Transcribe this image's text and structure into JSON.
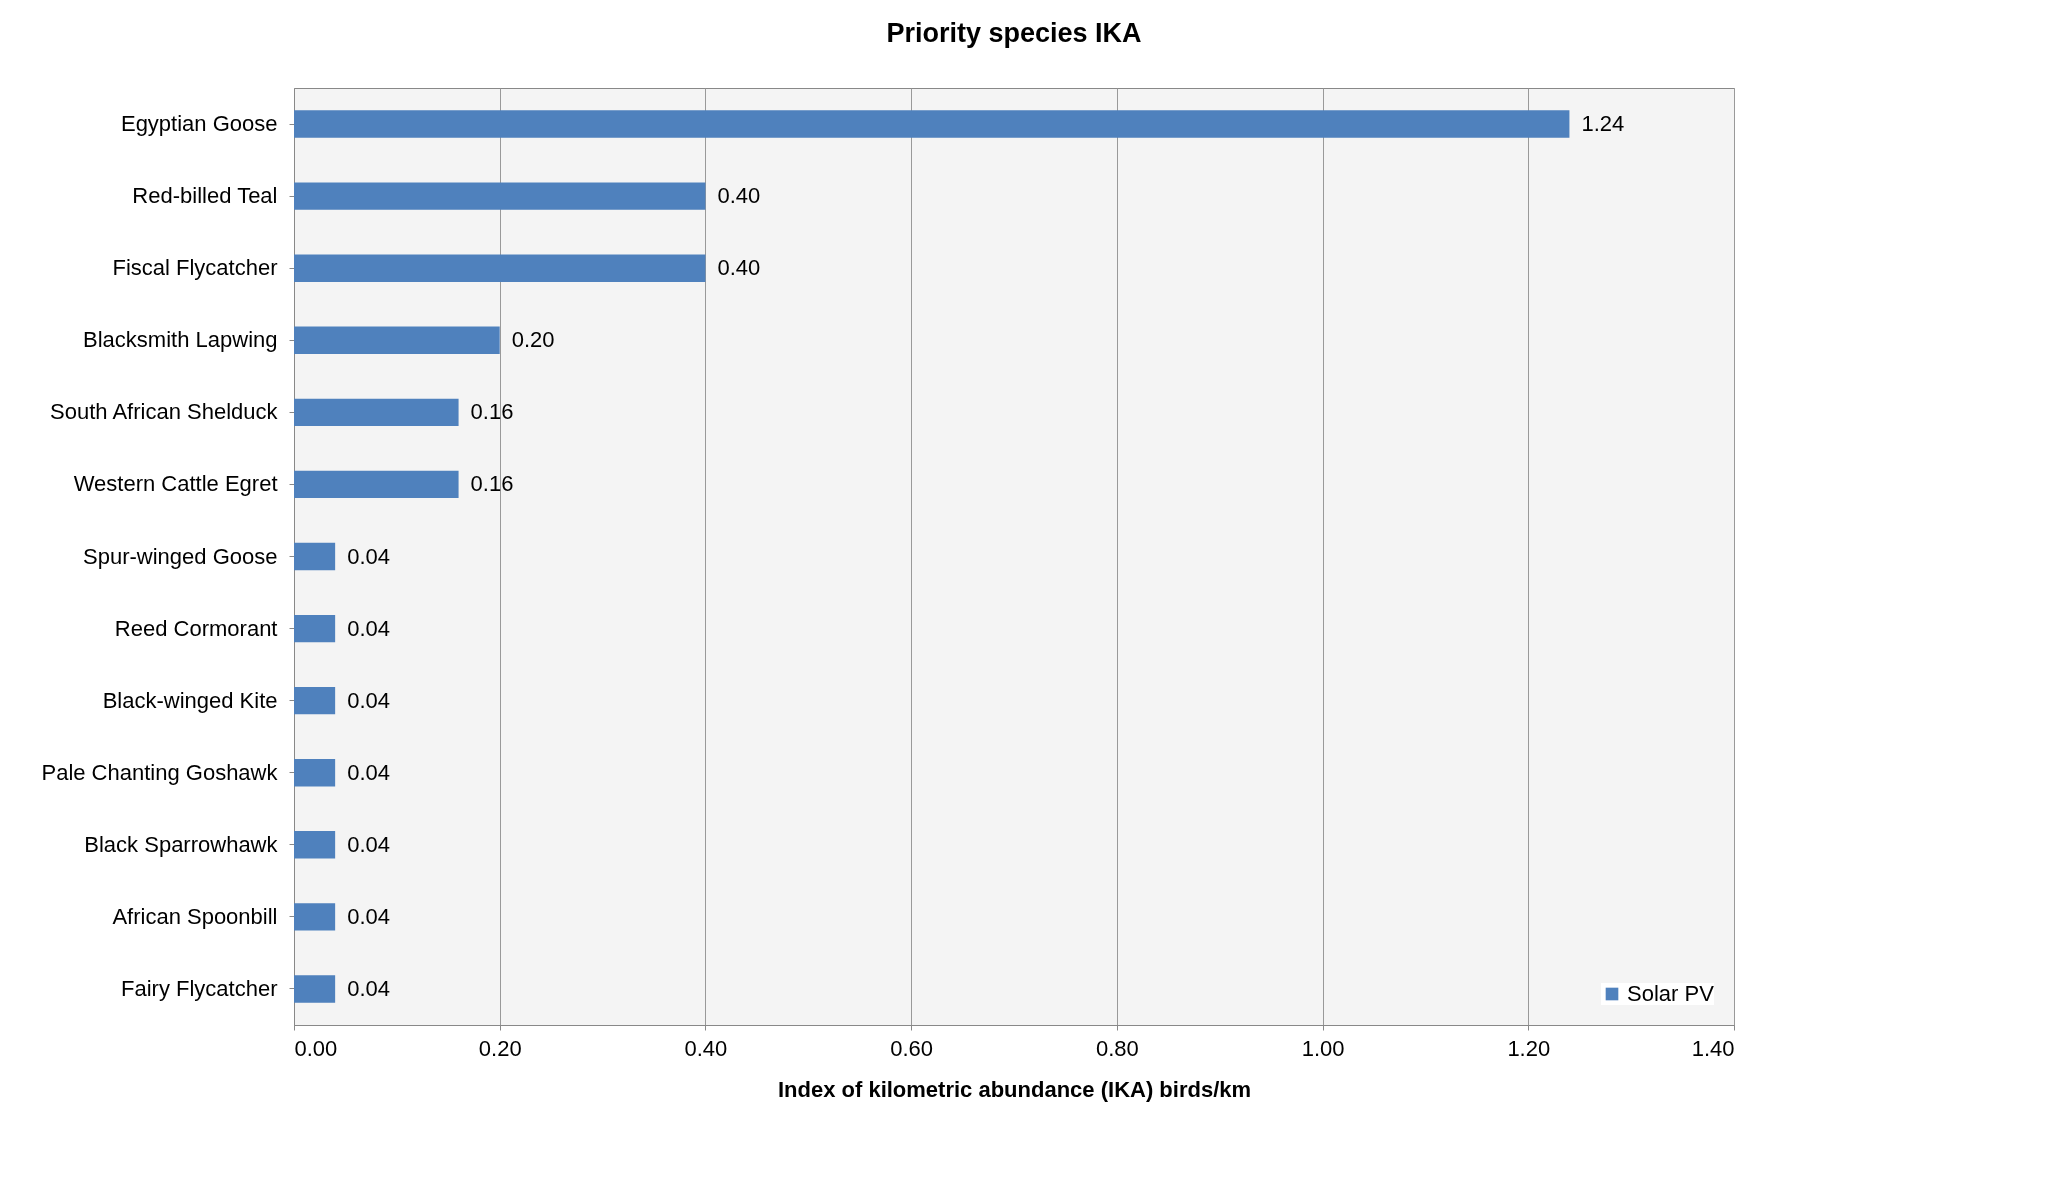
{
  "chart_data": {
    "type": "bar",
    "orientation": "horizontal",
    "title": "Priority species IKA",
    "xlabel": "Index of kilometric abundance  (IKA) birds/km",
    "categories": [
      "Egyptian Goose",
      "Red-billed Teal",
      "Fiscal Flycatcher",
      "Blacksmith Lapwing",
      "South African Shelduck",
      "Western Cattle Egret",
      "Spur-winged Goose",
      "Reed Cormorant",
      "Black-winged Kite",
      "Pale Chanting Goshawk",
      "Black Sparrowhawk",
      "African Spoonbill",
      "Fairy Flycatcher"
    ],
    "series": [
      {
        "name": "Solar PV",
        "color": "#4f81bd",
        "values": [
          1.24,
          0.4,
          0.4,
          0.2,
          0.16,
          0.16,
          0.04,
          0.04,
          0.04,
          0.04,
          0.04,
          0.04,
          0.04
        ]
      }
    ],
    "value_labels": [
      "1.24",
      "0.40",
      "0.40",
      "0.20",
      "0.16",
      "0.16",
      "0.04",
      "0.04",
      "0.04",
      "0.04",
      "0.04",
      "0.04",
      "0.04"
    ],
    "xlim": [
      0,
      1.4
    ],
    "xticks": [
      {
        "value": 0,
        "label": "0.00"
      },
      {
        "value": 0.2,
        "label": "0.20"
      },
      {
        "value": 0.4,
        "label": "0.40"
      },
      {
        "value": 0.6,
        "label": "0.60"
      },
      {
        "value": 0.8,
        "label": "0.80"
      },
      {
        "value": 1.0,
        "label": "1.00"
      },
      {
        "value": 1.2,
        "label": "1.20"
      },
      {
        "value": 1.4,
        "label": "1.40"
      }
    ],
    "grid": "x",
    "legend": "bottom right"
  }
}
